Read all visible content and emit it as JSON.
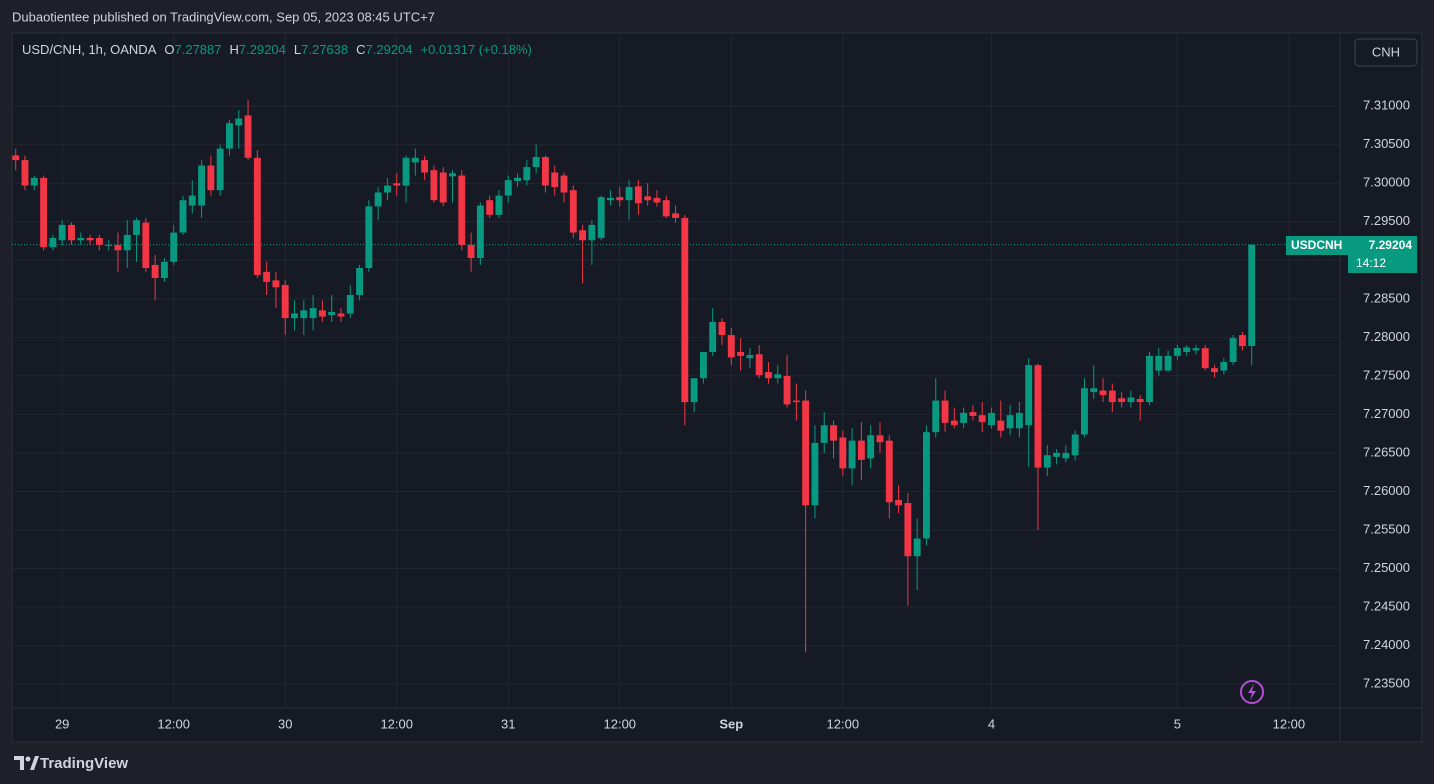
{
  "header": {
    "publisher": "Dubaotientee published on TradingView.com, Sep 05, 2023 08:45 UTC+7"
  },
  "chart_data": {
    "type": "candlestick",
    "symbol": "USD/CNH, 1h, OANDA",
    "legend_labels": [
      "O",
      "H",
      "L",
      "C"
    ],
    "change": "+0.01317 (+0.18%)",
    "currency": "CNH",
    "price_label": {
      "name": "USDCNH",
      "countdown": "14:12"
    },
    "up_color": "#089981",
    "down_color": "#f23645",
    "open": [
      7.3036,
      7.303,
      7.2997,
      7.3007,
      7.2917,
      7.2926,
      7.2946,
      7.2926,
      7.2929,
      7.2929,
      7.292,
      7.292,
      7.2913,
      7.2933,
      7.2949,
      7.2894,
      7.2877,
      7.2898,
      7.2936,
      7.2971,
      7.2971,
      7.3023,
      7.2991,
      7.3045,
      7.3075,
      7.3088,
      7.3033,
      7.2885,
      7.2874,
      7.2868,
      7.2825,
      7.2825,
      7.2825,
      7.2835,
      7.2829,
      7.2831,
      7.2831,
      7.2855,
      7.289,
      7.297,
      7.2988,
      7.3,
      7.2997,
      7.3027,
      7.303,
      7.3017,
      7.3014,
      7.3009,
      7.301,
      7.292,
      7.2903,
      7.2978,
      7.2959,
      7.2984,
      7.3003,
      7.3004,
      7.3021,
      7.3034,
      7.3014,
      7.301,
      7.2991,
      7.2939,
      7.2926,
      7.2929,
      7.2978,
      7.2982,
      7.2978,
      7.2996,
      7.2983,
      7.2981,
      7.2978,
      7.2961,
      7.2955,
      7.2716,
      7.2747,
      7.2781,
      7.282,
      7.2803,
      7.2781,
      7.2773,
      7.2778,
      7.2755,
      7.2747,
      7.275,
      7.2718,
      7.2718,
      7.2582,
      7.2663,
      7.2686,
      7.267,
      7.263,
      7.2666,
      7.2643,
      7.2673,
      7.2666,
      7.2589,
      7.2585,
      7.2516,
      7.2539,
      7.2677,
      7.2718,
      7.2692,
      7.2689,
      7.2703,
      7.2699,
      7.2686,
      7.2692,
      7.2682,
      7.2682,
      7.2686,
      7.2764,
      7.2631,
      7.2645,
      7.2643,
      7.2647,
      7.2674,
      7.2729,
      7.2731,
      7.2731,
      7.2721,
      7.2716,
      7.272,
      7.2716,
      7.2757,
      7.2757,
      7.2776,
      7.2781,
      7.2783,
      7.2786,
      7.276,
      7.2757,
      7.2768,
      7.2803,
      7.27887
    ],
    "high": [
      7.3045,
      7.3036,
      7.301,
      7.301,
      7.2933,
      7.2952,
      7.2949,
      7.2936,
      7.2933,
      7.2933,
      7.2926,
      7.2936,
      7.2952,
      7.2955,
      7.2955,
      7.2907,
      7.2903,
      7.2946,
      7.2984,
      7.3004,
      7.303,
      7.3036,
      7.305,
      7.3082,
      7.3095,
      7.3108,
      7.3043,
      7.2898,
      7.2885,
      7.2874,
      7.2848,
      7.2848,
      7.2855,
      7.2848,
      7.2855,
      7.2838,
      7.2868,
      7.2894,
      7.2978,
      7.2995,
      7.3007,
      7.3013,
      7.3036,
      7.3045,
      7.3036,
      7.3023,
      7.3021,
      7.3017,
      7.3017,
      7.2936,
      7.2975,
      7.2984,
      7.2991,
      7.301,
      7.3013,
      7.303,
      7.305,
      7.3036,
      7.3023,
      7.3014,
      7.2997,
      7.2946,
      7.2952,
      7.2984,
      7.2991,
      7.2995,
      7.3004,
      7.3004,
      7.3,
      7.2991,
      7.2984,
      7.2971,
      7.2959,
      7.2747,
      7.2781,
      7.2838,
      7.2825,
      7.2812,
      7.2799,
      7.2786,
      7.279,
      7.2768,
      7.2764,
      7.2777,
      7.274,
      7.2731,
      7.2686,
      7.2703,
      7.2692,
      7.2679,
      7.2682,
      7.269,
      7.2686,
      7.269,
      7.2673,
      7.2608,
      7.2598,
      7.2565,
      7.2686,
      7.2747,
      7.2731,
      7.2709,
      7.2709,
      7.2712,
      7.2716,
      7.2709,
      7.2718,
      7.2712,
      7.2716,
      7.2773,
      7.2766,
      7.266,
      7.2655,
      7.266,
      7.2679,
      7.2747,
      7.2764,
      7.2747,
      7.274,
      7.2729,
      7.2731,
      7.2725,
      7.2781,
      7.2786,
      7.2783,
      7.279,
      7.279,
      7.279,
      7.279,
      7.2764,
      7.2773,
      7.2803,
      7.2807,
      7.29204
    ],
    "low": [
      7.3017,
      7.2991,
      7.2991,
      7.2913,
      7.2913,
      7.292,
      7.292,
      7.292,
      7.292,
      7.2913,
      7.2913,
      7.2885,
      7.289,
      7.2898,
      7.2885,
      7.2848,
      7.2872,
      7.2894,
      7.2933,
      7.2961,
      7.2955,
      7.2984,
      7.2984,
      7.3036,
      7.3045,
      7.303,
      7.2877,
      7.2855,
      7.2838,
      7.2803,
      7.2809,
      7.2803,
      7.2809,
      7.282,
      7.282,
      7.282,
      7.2825,
      7.2848,
      7.2885,
      7.2952,
      7.2978,
      7.2984,
      7.2975,
      7.301,
      7.3004,
      7.2975,
      7.297,
      7.2975,
      7.2913,
      7.2885,
      7.2894,
      7.2955,
      7.2955,
      7.2975,
      7.2995,
      7.2997,
      7.3013,
      7.2988,
      7.2984,
      7.2975,
      7.2929,
      7.287,
      7.2894,
      7.2926,
      7.2971,
      7.297,
      7.2952,
      7.2959,
      7.2971,
      7.297,
      7.2955,
      7.2949,
      7.2686,
      7.2703,
      7.274,
      7.2776,
      7.279,
      7.2764,
      7.2757,
      7.276,
      7.2747,
      7.274,
      7.274,
      7.2709,
      7.2692,
      7.2391,
      7.2565,
      7.265,
      7.2643,
      7.262,
      7.2608,
      7.2615,
      7.263,
      7.265,
      7.2565,
      7.2572,
      7.2452,
      7.2472,
      7.253,
      7.267,
      7.2677,
      7.2682,
      7.2682,
      7.2692,
      7.2677,
      7.2682,
      7.267,
      7.2673,
      7.267,
      7.2632,
      7.255,
      7.262,
      7.2635,
      7.2638,
      7.264,
      7.267,
      7.272,
      7.2716,
      7.2703,
      7.2709,
      7.2709,
      7.2692,
      7.2712,
      7.275,
      7.2755,
      7.277,
      7.2776,
      7.2778,
      7.2757,
      7.2748,
      7.2752,
      7.2764,
      7.2783,
      7.27638
    ],
    "close": [
      7.303,
      7.2997,
      7.3007,
      7.2917,
      7.2929,
      7.2946,
      7.2926,
      7.2929,
      7.2926,
      7.292,
      7.292,
      7.2913,
      7.2933,
      7.2952,
      7.289,
      7.2877,
      7.2898,
      7.2936,
      7.2978,
      7.2984,
      7.3023,
      7.2991,
      7.3045,
      7.3078,
      7.3084,
      7.3033,
      7.2881,
      7.2872,
      7.2865,
      7.2825,
      7.2831,
      7.2835,
      7.2838,
      7.2827,
      7.2833,
      7.2827,
      7.2855,
      7.289,
      7.297,
      7.2988,
      7.2997,
      7.2997,
      7.3033,
      7.3033,
      7.3014,
      7.2978,
      7.2975,
      7.3013,
      7.292,
      7.2903,
      7.2971,
      7.2959,
      7.2984,
      7.3004,
      7.3007,
      7.3021,
      7.3034,
      7.2997,
      7.2995,
      7.2988,
      7.2936,
      7.2926,
      7.2946,
      7.2982,
      7.2981,
      7.2978,
      7.2995,
      7.2974,
      7.2978,
      7.2975,
      7.2957,
      7.2955,
      7.2716,
      7.2747,
      7.2781,
      7.282,
      7.2803,
      7.2774,
      7.2776,
      7.2777,
      7.2751,
      7.2747,
      7.2752,
      7.2713,
      7.2716,
      7.2582,
      7.2663,
      7.2686,
      7.2666,
      7.263,
      7.2666,
      7.2641,
      7.2673,
      7.2664,
      7.2586,
      7.2582,
      7.2516,
      7.2539,
      7.2677,
      7.2718,
      7.2689,
      7.2686,
      7.2702,
      7.2698,
      7.269,
      7.2702,
      7.2679,
      7.2699,
      7.2702,
      7.2764,
      7.2631,
      7.2647,
      7.265,
      7.265,
      7.2674,
      7.2734,
      7.2734,
      7.2725,
      7.2716,
      7.2716,
      7.2722,
      7.2716,
      7.2776,
      7.2776,
      7.2776,
      7.2786,
      7.2787,
      7.2786,
      7.276,
      7.2755,
      7.2768,
      7.2799,
      7.27887,
      7.29204
    ],
    "xlim": [
      -0.4,
      142.5
    ],
    "xticks": [
      {
        "value": 5,
        "label": "29"
      },
      {
        "value": 17,
        "label": "12:00"
      },
      {
        "value": 29,
        "label": "30"
      },
      {
        "value": 41,
        "label": "12:00"
      },
      {
        "value": 53,
        "label": "31"
      },
      {
        "value": 65,
        "label": "12:00"
      },
      {
        "value": 77,
        "label": "Sep"
      },
      {
        "value": 89,
        "label": "12:00"
      },
      {
        "value": 105,
        "label": "4"
      },
      {
        "value": 125,
        "label": "5"
      },
      {
        "value": 137,
        "label": "12:00"
      }
    ],
    "ylim": [
      7.2319,
      7.3195
    ],
    "yticks": [
      {
        "value": 7.235,
        "label": "7.23500"
      },
      {
        "value": 7.24,
        "label": "7.24000"
      },
      {
        "value": 7.245,
        "label": "7.24500"
      },
      {
        "value": 7.25,
        "label": "7.25000"
      },
      {
        "value": 7.255,
        "label": "7.25500"
      },
      {
        "value": 7.26,
        "label": "7.26000"
      },
      {
        "value": 7.265,
        "label": "7.26500"
      },
      {
        "value": 7.27,
        "label": "7.27000"
      },
      {
        "value": 7.275,
        "label": "7.27500"
      },
      {
        "value": 7.28,
        "label": "7.28000"
      },
      {
        "value": 7.285,
        "label": "7.28500"
      },
      {
        "value": 7.29,
        "label": "7.29000"
      },
      {
        "value": 7.295,
        "label": "7.29500"
      },
      {
        "value": 7.3,
        "label": "7.30000"
      },
      {
        "value": 7.305,
        "label": "7.30500"
      },
      {
        "value": 7.31,
        "label": "7.31000"
      }
    ],
    "grid": true
  },
  "footer": {
    "brand": "TradingView"
  }
}
